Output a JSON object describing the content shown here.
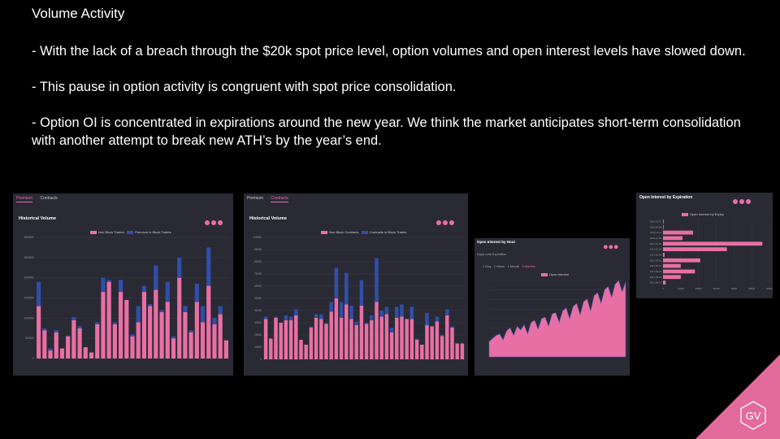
{
  "slide": {
    "title": "Volume Activity",
    "bullets": [
      "- With the lack of a breach through the $20k spot price level, option volumes and open interest levels have slowed down.",
      "- This pause in option activity is congruent with spot price consolidation.",
      "- Option OI is concentrated in expirations around the new year. We think the market anticipates short-term consolidation with another attempt to break new ATH’s by the year’s end."
    ]
  },
  "logo": {
    "text": "GV"
  },
  "colors": {
    "pink": "#e86fa4",
    "blue": "#2f4fa8",
    "panel": "#2a2a35"
  },
  "panels": {
    "premium": {
      "tabs": [
        "Premium",
        "Contracts"
      ],
      "active_tab": "Premium",
      "title": "Historical Volume",
      "legend": [
        "Non Block Traded",
        "Premium in Block Trades"
      ]
    },
    "contracts": {
      "tabs": [
        "Premium",
        "Contracts"
      ],
      "active_tab": "Contracts",
      "title": "Historical Volume",
      "legend": [
        "Non Block Contracts",
        "Contracts in Block Trades"
      ]
    },
    "oi_hour": {
      "title": "Open Interest by Hour",
      "subtitle": "Days until Expiration",
      "ranges": [
        "1 Day",
        "1 Week",
        "1 Month",
        "3 Months"
      ],
      "active_range": "3 Months",
      "legend": "Open Interest"
    },
    "oi_exp": {
      "title": "Open Interest by Expiration",
      "legend": "Open Interest by Expiry"
    }
  },
  "chart_data": [
    {
      "type": "bar",
      "title": "Historical Volume",
      "stacked": true,
      "ylim": [
        0,
        3000000
      ],
      "yticks": [
        "0",
        "500000",
        "1000000",
        "1500000",
        "2000000",
        "2500000",
        "3000000"
      ],
      "series": [
        {
          "name": "Non Block Traded",
          "values": [
            1300000,
            700000,
            200000,
            650000,
            250000,
            550000,
            950000,
            750000,
            280000,
            150000,
            850000,
            1650000,
            1900000,
            850000,
            1650000,
            1450000,
            550000,
            900000,
            1650000,
            1300000,
            1700000,
            1150000,
            1400000,
            500000,
            2000000,
            1150000,
            650000,
            1400000,
            900000,
            1800000,
            850000,
            1100000,
            450000
          ]
        },
        {
          "name": "Premium in Block Trades",
          "values": [
            600000,
            50000,
            50000,
            50000,
            0,
            20000,
            80000,
            50000,
            0,
            0,
            50000,
            350000,
            50000,
            50000,
            300000,
            0,
            50000,
            400000,
            150000,
            50000,
            600000,
            50000,
            500000,
            50000,
            500000,
            150000,
            50000,
            450000,
            400000,
            950000,
            150000,
            200000,
            0
          ]
        }
      ]
    },
    {
      "type": "bar",
      "title": "Historical Volume",
      "stacked": true,
      "ylim": [
        0,
        100000
      ],
      "yticks": [
        "0",
        "10000",
        "20000",
        "30000",
        "40000",
        "50000",
        "60000",
        "70000",
        "80000",
        "90000",
        "100000"
      ],
      "series": [
        {
          "name": "Non Block Contracts",
          "values": [
            33000,
            17000,
            34000,
            30000,
            32000,
            32000,
            36000,
            16000,
            12000,
            26000,
            34000,
            33000,
            29000,
            39000,
            50000,
            34000,
            45000,
            33000,
            28000,
            44000,
            29000,
            32000,
            47000,
            35000,
            37000,
            22000,
            34000,
            35000,
            33000,
            33000,
            16000,
            12000,
            28000,
            27000,
            31000,
            19000,
            36000,
            26000,
            13000,
            13000
          ]
        },
        {
          "name": "Contracts in Block Trades",
          "values": [
            2000,
            0,
            1000,
            0,
            4000,
            3000,
            5000,
            0,
            0,
            1000,
            3000,
            4000,
            1000,
            8000,
            25000,
            13000,
            26000,
            11000,
            3000,
            21000,
            1000,
            4000,
            36000,
            5000,
            6000,
            4000,
            9000,
            10000,
            0,
            10000,
            1000,
            0,
            10000,
            0,
            4000,
            1000,
            5000,
            1000,
            0,
            0
          ]
        }
      ]
    },
    {
      "type": "area",
      "title": "Open Interest by Hour",
      "series": [
        {
          "name": "Open Interest",
          "values": [
            20,
            24,
            28,
            30,
            22,
            34,
            38,
            28,
            40,
            35,
            42,
            30,
            45,
            48,
            36,
            50,
            52,
            40,
            56,
            58,
            45,
            60,
            64,
            50,
            66,
            70,
            55,
            72,
            76,
            60,
            80,
            84,
            70,
            88,
            92,
            78,
            95,
            100,
            85,
            98
          ]
        }
      ]
    },
    {
      "type": "bar",
      "orientation": "horizontal",
      "title": "Open Interest by Expiration",
      "categories": [
        "2020-10-07",
        "2020-10-08",
        "2020-11-11",
        "2020-12-18",
        "2020-12-25",
        "2021-01-29",
        "2021-02-26",
        "2021-03-26",
        "2021-06-25",
        "2021-09-24",
        "2021-08-25",
        "2021-08-24"
      ],
      "series": [
        {
          "name": "Open Interest by Expiry",
          "values": [
            300,
            200,
            17000,
            11000,
            56000,
            36000,
            900,
            21000,
            10000,
            18000,
            10000,
            1500
          ]
        }
      ],
      "xlim": [
        0,
        60000
      ],
      "xticks": [
        "0",
        "10000",
        "20000",
        "30000",
        "40000",
        "50000",
        "60000"
      ]
    }
  ]
}
